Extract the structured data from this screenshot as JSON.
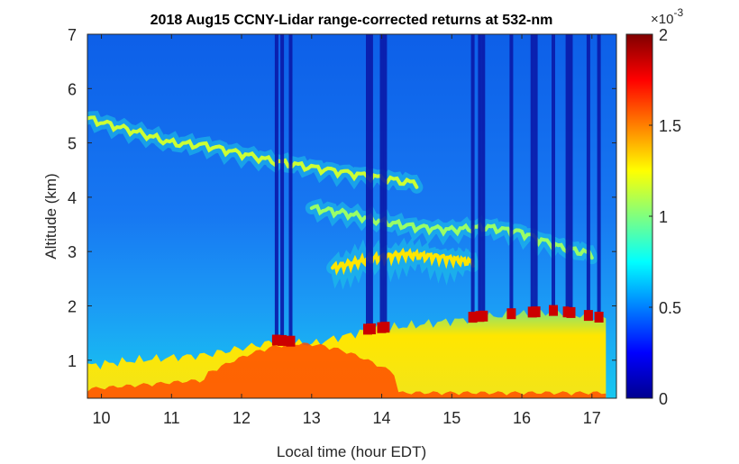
{
  "chart_data": {
    "type": "heatmap",
    "title": "2018 Aug15 CCNY-Lidar range-corrected returns at 532-nm",
    "xlabel": "Local time (hour EDT)",
    "ylabel": "Altitude (km)",
    "xlim": [
      9.8,
      17.35
    ],
    "ylim": [
      0.3,
      7
    ],
    "x_ticks": [
      10,
      11,
      12,
      13,
      14,
      15,
      16,
      17
    ],
    "y_ticks": [
      1,
      2,
      3,
      4,
      5,
      6,
      7
    ],
    "colorbar": {
      "min": 0,
      "max": 2,
      "ticks": [
        "0",
        "0.5",
        "1",
        "1.5",
        "2"
      ],
      "tick_values": [
        0,
        0.5,
        1,
        1.5,
        2
      ],
      "scale_base": "×10",
      "scale_exponent": "-3",
      "colormap": "jet"
    },
    "layers": [
      {
        "name": "boundary-layer",
        "x": [
          9.8,
          10.5,
          11.5,
          12.5,
          13,
          13.8,
          14.5,
          15.5,
          16.5,
          17.2
        ],
        "top_km": [
          0.9,
          1.0,
          1.1,
          1.35,
          1.3,
          1.55,
          1.65,
          1.8,
          1.9,
          1.75
        ],
        "value": 1.35
      },
      {
        "name": "upper-aerosol-layer",
        "x": [
          9.8,
          10.5,
          11.0,
          11.5,
          12.0,
          12.5,
          13.0,
          13.5,
          14.0,
          14.5
        ],
        "alt_km": [
          5.45,
          5.2,
          5.0,
          4.95,
          4.8,
          4.65,
          4.55,
          4.45,
          4.35,
          4.25
        ],
        "value": 1.15
      },
      {
        "name": "mid-aerosol-layer",
        "x": [
          13.0,
          13.5,
          14.0,
          14.5,
          15.0,
          15.5,
          16.0,
          16.5,
          17.0
        ],
        "alt_km": [
          3.8,
          3.7,
          3.55,
          3.45,
          3.4,
          3.45,
          3.35,
          3.1,
          2.95
        ],
        "value": 1.05
      },
      {
        "name": "lower-aerosol-layer",
        "x": [
          13.3,
          13.8,
          14.3,
          14.8,
          15.3
        ],
        "alt_km": [
          2.7,
          2.85,
          2.95,
          2.9,
          2.8
        ],
        "value": 1.3
      }
    ],
    "cloud_columns_hour": [
      12.5,
      12.58,
      12.7,
      13.8,
      13.85,
      14.0,
      14.05,
      15.3,
      15.4,
      15.45,
      15.85,
      16.15,
      16.2,
      16.45,
      16.65,
      16.7,
      16.95,
      17.1
    ]
  }
}
